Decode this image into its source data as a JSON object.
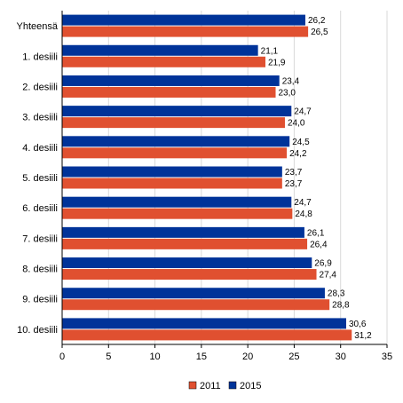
{
  "chart_data": {
    "type": "bar",
    "orientation": "horizontal",
    "categories": [
      "Yhteensä",
      "1. desiili",
      "2. desiili",
      "3. desiili",
      "4. desiili",
      "5. desiili",
      "6. desiili",
      "7. desiili",
      "8. desiili",
      "9. desiili",
      "10. desiili"
    ],
    "series": [
      {
        "name": "2015",
        "color": "#003399",
        "values": [
          26.2,
          21.1,
          23.4,
          24.7,
          24.5,
          23.7,
          24.7,
          26.1,
          26.9,
          28.3,
          30.6
        ],
        "labels": [
          "26,2",
          "21,1",
          "23,4",
          "24,7",
          "24,5",
          "23,7",
          "24,7",
          "26,1",
          "26,9",
          "28,3",
          "30,6"
        ]
      },
      {
        "name": "2011",
        "color": "#e05030",
        "values": [
          26.5,
          21.9,
          23.0,
          24.0,
          24.2,
          23.7,
          24.8,
          26.4,
          27.4,
          28.8,
          31.2
        ],
        "labels": [
          "26,5",
          "21,9",
          "23,0",
          "24,0",
          "24,2",
          "23,7",
          "24,8",
          "26,4",
          "27,4",
          "28,8",
          "31,2"
        ]
      }
    ],
    "xlim": [
      0,
      35
    ],
    "xticks": [
      "0",
      "5",
      "10",
      "15",
      "20",
      "25",
      "30",
      "35"
    ],
    "grid": "vertical",
    "legend": {
      "position": "bottom-center",
      "order": [
        "2011",
        "2015"
      ]
    }
  }
}
